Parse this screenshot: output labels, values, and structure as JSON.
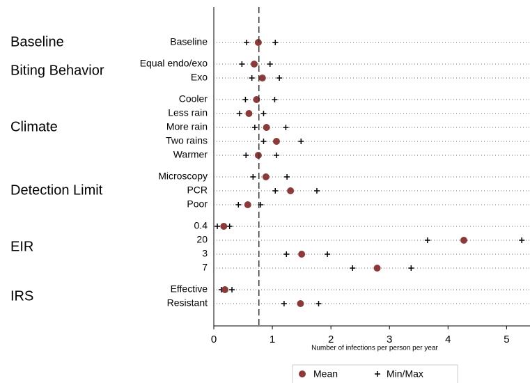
{
  "chart_data": {
    "type": "dotplot",
    "x_label": "Number of infections per person per year",
    "xlim": [
      0,
      5.4
    ],
    "xticks": [
      0,
      1,
      2,
      3,
      4,
      5
    ],
    "reference_line": 0.77,
    "groups": [
      {
        "label": "Baseline",
        "categories": [
          "Baseline"
        ]
      },
      {
        "label": "Biting Behavior",
        "categories": [
          "Equal endo/exo",
          "Exo"
        ]
      },
      {
        "label": "Climate",
        "categories": [
          "Cooler",
          "Less rain",
          "More rain",
          "Two rains",
          "Warmer"
        ]
      },
      {
        "label": "Detection Limit",
        "categories": [
          "Microscopy",
          "PCR",
          "Poor"
        ]
      },
      {
        "label": "EIR",
        "categories": [
          "0.4",
          "20",
          "3",
          "7"
        ]
      },
      {
        "label": "IRS",
        "categories": [
          "Effective",
          "Resistant"
        ]
      }
    ],
    "series": [
      {
        "name": "Mean",
        "color": "#8b3a3a",
        "values": [
          0.76,
          0.69,
          0.83,
          0.73,
          0.6,
          0.9,
          1.07,
          0.76,
          0.89,
          1.31,
          0.58,
          0.17,
          4.27,
          1.5,
          2.79,
          0.19,
          1.48
        ]
      },
      {
        "name": "Min/Max",
        "color": "#000000",
        "min": [
          0.56,
          0.48,
          0.65,
          0.54,
          0.44,
          0.7,
          0.85,
          0.55,
          0.67,
          1.05,
          0.42,
          0.06,
          3.65,
          1.24,
          2.37,
          0.13,
          1.2
        ],
        "max": [
          1.05,
          0.96,
          1.12,
          1.04,
          0.85,
          1.23,
          1.49,
          1.07,
          1.25,
          1.76,
          0.8,
          0.27,
          5.26,
          1.94,
          3.37,
          0.31,
          1.79
        ]
      }
    ]
  }
}
